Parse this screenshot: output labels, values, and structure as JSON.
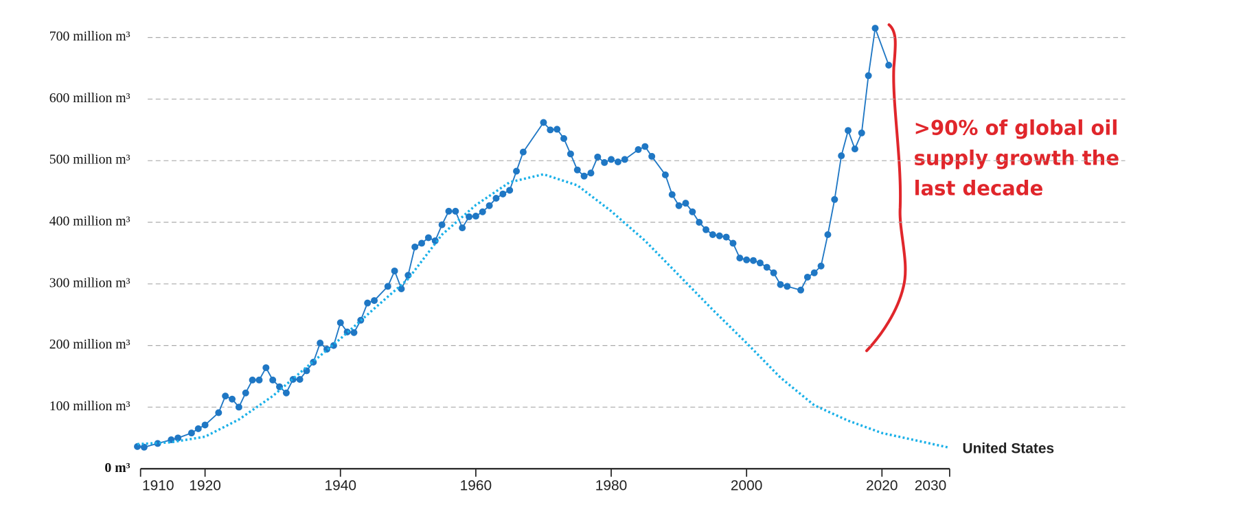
{
  "chart_data": {
    "type": "line",
    "xlim": [
      1910,
      2030
    ],
    "xticks": [
      1910,
      1920,
      1940,
      1960,
      1980,
      2000,
      2020,
      2030
    ],
    "ylim": [
      0,
      700
    ],
    "yticks": [
      {
        "value": 0,
        "label": "0 m³"
      },
      {
        "value": 100,
        "label": "100 million m³"
      },
      {
        "value": 200,
        "label": "200 million m³"
      },
      {
        "value": 300,
        "label": "300 million m³"
      },
      {
        "value": 400,
        "label": "400 million m³"
      },
      {
        "value": 500,
        "label": "500 million m³"
      },
      {
        "value": 600,
        "label": "600 million m³"
      },
      {
        "value": 700,
        "label": "700  million m³"
      }
    ],
    "grid": true,
    "annotation": ">90% of global oil supply growth the last decade",
    "series": [
      {
        "color": "#1f77c4",
        "style": "solid-markers",
        "x": [
          1910,
          1911,
          1913,
          1915,
          1916,
          1918,
          1919,
          1920,
          1922,
          1923,
          1924,
          1925,
          1926,
          1927,
          1928,
          1929,
          1930,
          1931,
          1932,
          1933,
          1934,
          1935,
          1936,
          1937,
          1938,
          1939,
          1940,
          1941,
          1942,
          1943,
          1944,
          1945,
          1947,
          1948,
          1949,
          1950,
          1951,
          1952,
          1953,
          1954,
          1955,
          1956,
          1957,
          1958,
          1959,
          1960,
          1961,
          1962,
          1963,
          1964,
          1965,
          1966,
          1967,
          1970,
          1971,
          1972,
          1973,
          1974,
          1975,
          1976,
          1977,
          1978,
          1979,
          1980,
          1981,
          1982,
          1984,
          1985,
          1986,
          1988,
          1989,
          1990,
          1991,
          1992,
          1993,
          1994,
          1995,
          1996,
          1997,
          1998,
          1999,
          2000,
          2001,
          2002,
          2003,
          2004,
          2005,
          2006,
          2008,
          2009,
          2010,
          2011,
          2012,
          2013,
          2014,
          2015,
          2016,
          2017,
          2018,
          2019,
          2021
        ],
        "values": [
          36,
          35,
          41,
          47,
          50,
          58,
          65,
          71,
          91,
          118,
          113,
          100,
          123,
          144,
          144,
          164,
          144,
          133,
          123,
          145,
          145,
          159,
          173,
          204,
          194,
          200,
          237,
          222,
          221,
          241,
          269,
          273,
          296,
          321,
          292,
          314,
          360,
          366,
          375,
          370,
          396,
          418,
          418,
          391,
          409,
          410,
          417,
          427,
          439,
          446,
          452,
          483,
          514,
          562,
          550,
          551,
          536,
          511,
          485,
          475,
          480,
          506,
          497,
          502,
          498,
          502,
          518,
          523,
          507,
          477,
          445,
          427,
          431,
          417,
          400,
          388,
          380,
          378,
          376,
          366,
          342,
          339,
          338,
          334,
          327,
          318,
          299,
          296,
          290,
          311,
          318,
          329,
          380,
          437,
          508,
          549,
          519,
          545,
          638,
          715,
          655
        ]
      },
      {
        "name": "United States",
        "color": "#1ab0e8",
        "style": "dotted",
        "x": [
          1910,
          1915,
          1920,
          1925,
          1930,
          1935,
          1940,
          1945,
          1950,
          1955,
          1960,
          1965,
          1970,
          1975,
          1980,
          1985,
          1990,
          1995,
          2000,
          2005,
          2010,
          2015,
          2020,
          2025,
          2030
        ],
        "values": [
          40,
          43,
          52,
          80,
          118,
          165,
          211,
          260,
          308,
          380,
          428,
          465,
          478,
          460,
          418,
          370,
          314,
          258,
          204,
          148,
          103,
          78,
          58,
          46,
          34
        ]
      }
    ]
  }
}
